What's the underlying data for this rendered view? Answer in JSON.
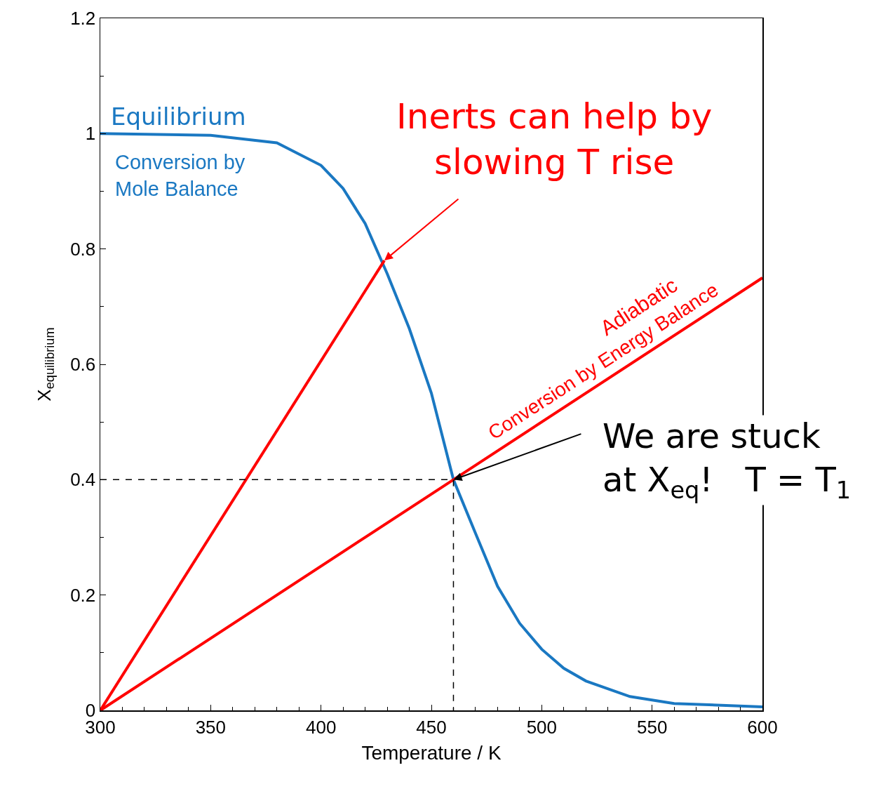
{
  "chart_data": {
    "type": "line",
    "xlabel": "Temperature / K",
    "ylabel": "X$_{equilibrium}$",
    "xlim": [
      300,
      600
    ],
    "xticks": [
      300,
      350,
      400,
      450,
      500,
      550,
      600
    ],
    "ylim": [
      0,
      1.2
    ],
    "yticks": [
      0,
      0.2,
      0.4,
      0.6,
      0.8,
      1,
      1.2
    ],
    "grid": false,
    "marker": "none",
    "line_style": "solid",
    "series": [
      {
        "color": "#1a78c2",
        "x": [
          300,
          350,
          380,
          400,
          410,
          420,
          430,
          440,
          450,
          460,
          470,
          480,
          490,
          500,
          510,
          520,
          540,
          560,
          600
        ],
        "values": [
          1.0,
          0.997,
          0.984,
          0.945,
          0.905,
          0.844,
          0.757,
          0.662,
          0.55,
          0.4,
          0.307,
          0.215,
          0.151,
          0.106,
          0.073,
          0.051,
          0.024,
          0.012,
          0.006
        ]
      },
      {
        "color": "#ff0000",
        "x": [
          300,
          460,
          600
        ],
        "values": [
          0,
          0.4,
          0.75
        ]
      },
      {
        "color": "#ff0000",
        "x": [
          300,
          428.7
        ],
        "values": [
          0,
          0.78
        ]
      },
      {
        "color": "#000000",
        "line_style": "dashed",
        "x": [
          300,
          460,
          460
        ],
        "values": [
          0.4,
          0.4,
          0
        ]
      }
    ],
    "annotations": [
      "Equilibrium",
      "Conversion by\nMole Balance",
      "Adiabatic",
      "Conversion by Energy Balance",
      {
        "text": "Inerts can help by\nslowing T rise",
        "x": 428.7,
        "y": 0.78
      },
      {
        "text": "We are stuck\nat X$_{eq}$!   T = T$_{1}$",
        "x": 460,
        "y": 0.4
      }
    ]
  }
}
